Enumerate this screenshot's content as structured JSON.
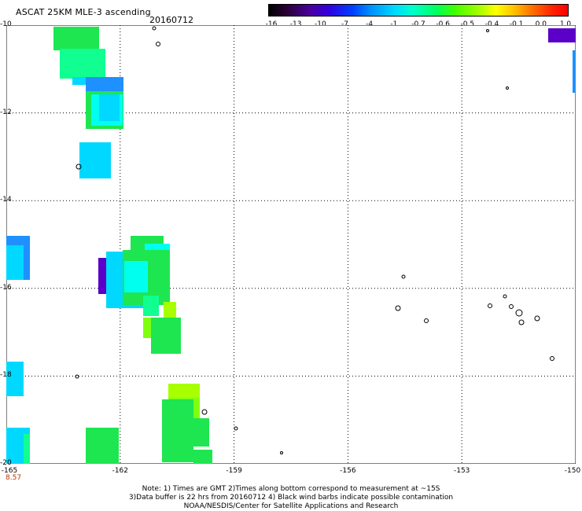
{
  "title": "ASCAT 25KM MLE-3 ascending",
  "date": "20160712",
  "colorbar": {
    "ticks": [
      "-16",
      "-13",
      "-10",
      "-7",
      "-4",
      "-1",
      "-0.7",
      "-0.6",
      "-0.5",
      "-0.4",
      "-0.1",
      "0.0",
      "1.0"
    ]
  },
  "map": {
    "lat_range": [
      -20,
      -10
    ],
    "lon_range": [
      -165,
      -150
    ],
    "y_ticks": [
      "-10",
      "-12",
      "-14",
      "-16",
      "-18",
      "-20"
    ],
    "x_ticks": [
      "-165",
      "-162",
      "-159",
      "-156",
      "-153",
      "-150"
    ],
    "grid": "dotted",
    "colors": {
      "green": "#1ee650",
      "teal": "#10ff90",
      "cyan": "#00d8ff",
      "light_cyan": "#00ffee",
      "blue": "#1e90ff",
      "purple": "#5a00c8",
      "lime": "#a8ff00",
      "yellow_green": "#80ff10"
    }
  },
  "corner_value": "8.57",
  "notes": {
    "line1": "Note: 1) Times are GMT 2)Times along bottom correspond to measurement at ~15S",
    "line2": "3)Data buffer is 22 hrs from 20160712 4) Black wind barbs indicate possible contamination",
    "line3": "NOAA/NESDIS/Center for Satellite Applications and Research"
  }
}
